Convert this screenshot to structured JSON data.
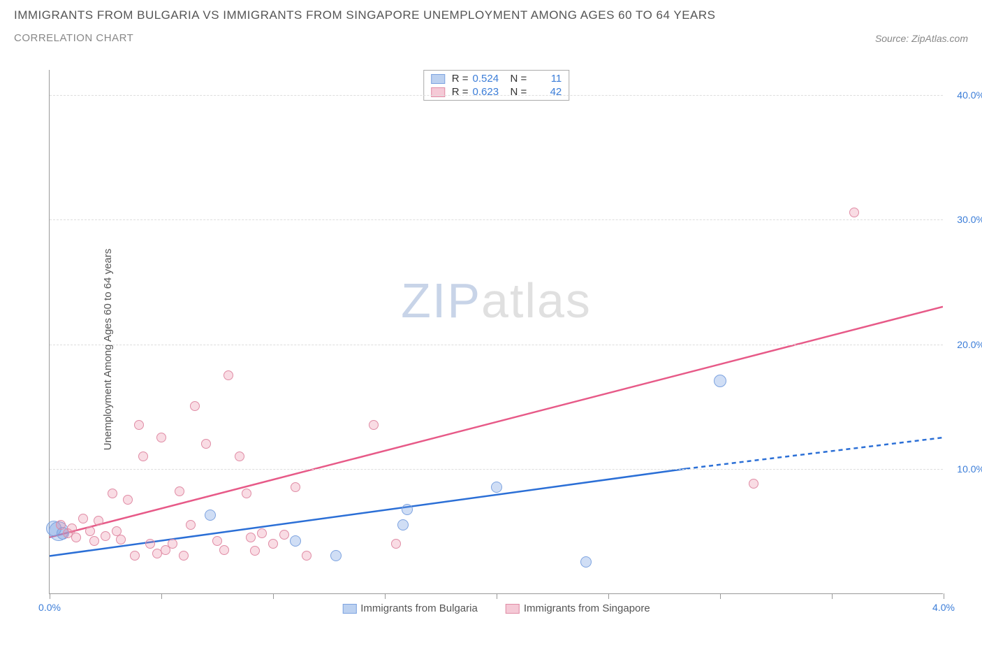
{
  "title": "IMMIGRANTS FROM BULGARIA VS IMMIGRANTS FROM SINGAPORE UNEMPLOYMENT AMONG AGES 60 TO 64 YEARS",
  "subtitle": "CORRELATION CHART",
  "source": "Source: ZipAtlas.com",
  "y_label": "Unemployment Among Ages 60 to 64 years",
  "watermark_a": "ZIP",
  "watermark_b": "atlas",
  "chart": {
    "type": "scatter",
    "x_domain": [
      0,
      4.0
    ],
    "y_domain": [
      0,
      42
    ],
    "x_ticks": [
      0.0,
      0.5,
      1.0,
      1.5,
      2.0,
      2.5,
      3.0,
      3.5,
      4.0
    ],
    "x_tick_labels": {
      "0": "0.0%",
      "4": "4.0%"
    },
    "y_gridlines": [
      10,
      20,
      30,
      40
    ],
    "y_tick_labels": {
      "10": "10.0%",
      "20": "20.0%",
      "30": "30.0%",
      "40": "40.0%"
    },
    "background_color": "#ffffff",
    "grid_color": "#dddddd",
    "axis_color": "#999999",
    "series": [
      {
        "id": "bulgaria",
        "label": "Immigrants from Bulgaria",
        "color_fill": "rgba(120,160,225,0.35)",
        "color_stroke": "#7da3e0",
        "swatch_fill": "#bcd1f0",
        "swatch_border": "#7da3e0",
        "trend_color": "#2b6fd6",
        "trend_width": 2.5,
        "r_label": "R =",
        "r_value": "0.524",
        "n_label": "N =",
        "n_value": "11",
        "trend": {
          "x1": 0.0,
          "y1": 3.0,
          "x2_solid": 2.85,
          "y2_solid": 10.0,
          "x2": 4.0,
          "y2": 12.5
        },
        "points": [
          {
            "x": 0.02,
            "y": 5.2,
            "r": 11
          },
          {
            "x": 0.04,
            "y": 5.0,
            "r": 14
          },
          {
            "x": 0.06,
            "y": 4.8,
            "r": 9
          },
          {
            "x": 0.72,
            "y": 6.3,
            "r": 8
          },
          {
            "x": 1.1,
            "y": 4.2,
            "r": 8
          },
          {
            "x": 1.28,
            "y": 3.0,
            "r": 8
          },
          {
            "x": 1.58,
            "y": 5.5,
            "r": 8
          },
          {
            "x": 1.6,
            "y": 6.7,
            "r": 8
          },
          {
            "x": 2.0,
            "y": 8.5,
            "r": 8
          },
          {
            "x": 2.4,
            "y": 2.5,
            "r": 8
          },
          {
            "x": 3.0,
            "y": 17.0,
            "r": 9
          }
        ]
      },
      {
        "id": "singapore",
        "label": "Immigrants from Singapore",
        "color_fill": "rgba(235,140,165,0.30)",
        "color_stroke": "#e08ca5",
        "swatch_fill": "#f5c9d6",
        "swatch_border": "#e08ca5",
        "trend_color": "#e75a88",
        "trend_width": 2.5,
        "r_label": "R =",
        "r_value": "0.623",
        "n_label": "N =",
        "n_value": "42",
        "trend": {
          "x1": 0.0,
          "y1": 4.5,
          "x2_solid": 4.0,
          "y2_solid": 23.0,
          "x2": 4.0,
          "y2": 23.0
        },
        "points": [
          {
            "x": 0.05,
            "y": 5.5,
            "r": 7
          },
          {
            "x": 0.08,
            "y": 4.8,
            "r": 7
          },
          {
            "x": 0.1,
            "y": 5.2,
            "r": 7
          },
          {
            "x": 0.12,
            "y": 4.5,
            "r": 7
          },
          {
            "x": 0.15,
            "y": 6.0,
            "r": 7
          },
          {
            "x": 0.18,
            "y": 5.0,
            "r": 7
          },
          {
            "x": 0.2,
            "y": 4.2,
            "r": 7
          },
          {
            "x": 0.22,
            "y": 5.8,
            "r": 7
          },
          {
            "x": 0.25,
            "y": 4.6,
            "r": 7
          },
          {
            "x": 0.28,
            "y": 8.0,
            "r": 7
          },
          {
            "x": 0.3,
            "y": 5.0,
            "r": 7
          },
          {
            "x": 0.32,
            "y": 4.3,
            "r": 7
          },
          {
            "x": 0.35,
            "y": 7.5,
            "r": 7
          },
          {
            "x": 0.38,
            "y": 3.0,
            "r": 7
          },
          {
            "x": 0.4,
            "y": 13.5,
            "r": 7
          },
          {
            "x": 0.42,
            "y": 11.0,
            "r": 7
          },
          {
            "x": 0.45,
            "y": 4.0,
            "r": 7
          },
          {
            "x": 0.48,
            "y": 3.2,
            "r": 7
          },
          {
            "x": 0.5,
            "y": 12.5,
            "r": 7
          },
          {
            "x": 0.52,
            "y": 3.5,
            "r": 7
          },
          {
            "x": 0.55,
            "y": 4.0,
            "r": 7
          },
          {
            "x": 0.58,
            "y": 8.2,
            "r": 7
          },
          {
            "x": 0.6,
            "y": 3.0,
            "r": 7
          },
          {
            "x": 0.63,
            "y": 5.5,
            "r": 7
          },
          {
            "x": 0.65,
            "y": 15.0,
            "r": 7
          },
          {
            "x": 0.7,
            "y": 12.0,
            "r": 7
          },
          {
            "x": 0.75,
            "y": 4.2,
            "r": 7
          },
          {
            "x": 0.78,
            "y": 3.5,
            "r": 7
          },
          {
            "x": 0.8,
            "y": 17.5,
            "r": 7
          },
          {
            "x": 0.85,
            "y": 11.0,
            "r": 7
          },
          {
            "x": 0.88,
            "y": 8.0,
            "r": 7
          },
          {
            "x": 0.9,
            "y": 4.5,
            "r": 7
          },
          {
            "x": 0.92,
            "y": 3.4,
            "r": 7
          },
          {
            "x": 0.95,
            "y": 4.8,
            "r": 7
          },
          {
            "x": 1.0,
            "y": 4.0,
            "r": 7
          },
          {
            "x": 1.05,
            "y": 4.7,
            "r": 7
          },
          {
            "x": 1.1,
            "y": 8.5,
            "r": 7
          },
          {
            "x": 1.15,
            "y": 3.0,
            "r": 7
          },
          {
            "x": 1.45,
            "y": 13.5,
            "r": 7
          },
          {
            "x": 1.55,
            "y": 4.0,
            "r": 7
          },
          {
            "x": 3.15,
            "y": 8.8,
            "r": 7
          },
          {
            "x": 3.6,
            "y": 30.5,
            "r": 7
          }
        ]
      }
    ]
  }
}
